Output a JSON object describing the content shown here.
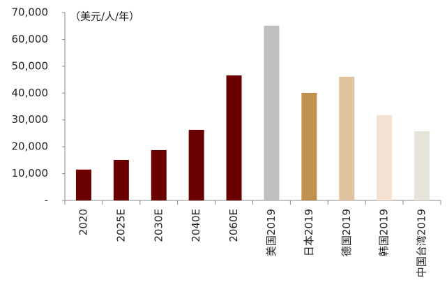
{
  "chart_data": {
    "type": "bar",
    "annotation": "（美元/人/年）",
    "categories": [
      "2020",
      "2025E",
      "2030E",
      "2040E",
      "2060E",
      "美国2019",
      "日本2019",
      "德国2019",
      "韩国2019",
      "中国台湾2019"
    ],
    "values": [
      11500,
      15100,
      18750,
      26300,
      46600,
      65100,
      40100,
      46100,
      31800,
      25800
    ],
    "colors": [
      "#6b0000",
      "#6b0000",
      "#6b0000",
      "#6b0000",
      "#6b0000",
      "#bfbfbf",
      "#c0904f",
      "#e0c49e",
      "#f6e2d2",
      "#e6e4d7"
    ],
    "ylim": [
      0,
      70000
    ],
    "yticks": [
      {
        "value": 0,
        "label": "-"
      },
      {
        "value": 10000,
        "label": "10,000"
      },
      {
        "value": 20000,
        "label": "20,000"
      },
      {
        "value": 30000,
        "label": "30,000"
      },
      {
        "value": 40000,
        "label": "40,000"
      },
      {
        "value": 50000,
        "label": "50,000"
      },
      {
        "value": 60000,
        "label": "60,000"
      },
      {
        "value": 70000,
        "label": "70,000"
      }
    ]
  }
}
